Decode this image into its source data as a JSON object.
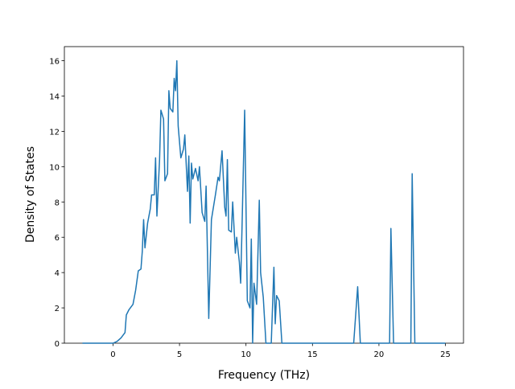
{
  "chart_data": {
    "type": "line",
    "xlabel": "Frequency (THz)",
    "ylabel": "Density of States",
    "x": [
      -2.3,
      0,
      0.3,
      0.6,
      0.9,
      1.0,
      1.2,
      1.5,
      1.7,
      1.9,
      2.1,
      2.2,
      2.3,
      2.4,
      2.6,
      2.8,
      2.9,
      3.1,
      3.2,
      3.3,
      3.5,
      3.6,
      3.8,
      3.9,
      4.1,
      4.2,
      4.3,
      4.5,
      4.6,
      4.7,
      4.8,
      4.9,
      5.1,
      5.3,
      5.4,
      5.6,
      5.7,
      5.8,
      5.9,
      6.0,
      6.2,
      6.4,
      6.5,
      6.7,
      6.9,
      7.0,
      7.2,
      7.4,
      7.7,
      7.9,
      8.0,
      8.2,
      8.4,
      8.5,
      8.6,
      8.7,
      8.9,
      9.0,
      9.2,
      9.3,
      9.5,
      9.6,
      9.7,
      9.9,
      10.1,
      10.3,
      10.4,
      10.5,
      10.6,
      10.8,
      11.0,
      11.1,
      11.3,
      11.5,
      11.9,
      12.1,
      12.2,
      12.3,
      12.5,
      12.7,
      18.1,
      18.4,
      18.6,
      20.8,
      20.9,
      21.1,
      22.4,
      22.5,
      22.7,
      25.0
    ],
    "series": [
      {
        "color": "#1f77b4",
        "values": [
          0,
          0,
          0.1,
          0.3,
          0.6,
          1.6,
          1.9,
          2.2,
          3.0,
          4.1,
          4.2,
          5.2,
          7.0,
          5.4,
          6.8,
          7.6,
          8.4,
          8.4,
          10.5,
          7.2,
          10.4,
          13.2,
          12.7,
          9.2,
          9.6,
          14.3,
          13.3,
          13.1,
          15.0,
          14.3,
          16.0,
          12.3,
          10.5,
          11.0,
          11.8,
          8.6,
          10.6,
          6.8,
          10.2,
          9.3,
          9.9,
          9.2,
          10.0,
          7.4,
          6.9,
          8.9,
          1.4,
          7.0,
          8.4,
          9.4,
          9.2,
          10.9,
          7.7,
          7.2,
          10.4,
          6.4,
          6.3,
          8.0,
          5.1,
          6.0,
          4.6,
          3.4,
          6.5,
          13.2,
          2.4,
          2.0,
          5.9,
          0,
          3.4,
          2.2,
          8.1,
          4.0,
          2.6,
          0,
          0,
          4.3,
          1.1,
          2.7,
          2.4,
          0,
          0,
          3.2,
          0,
          0,
          6.5,
          0,
          0,
          9.6,
          0,
          0
        ]
      }
    ],
    "xlim": [
      -3.66,
      26.36
    ],
    "ylim": [
      0,
      16.8
    ],
    "xticks": [
      0,
      5,
      10,
      15,
      20,
      25
    ],
    "yticks": [
      0,
      2,
      4,
      6,
      8,
      10,
      12,
      14,
      16
    ]
  }
}
